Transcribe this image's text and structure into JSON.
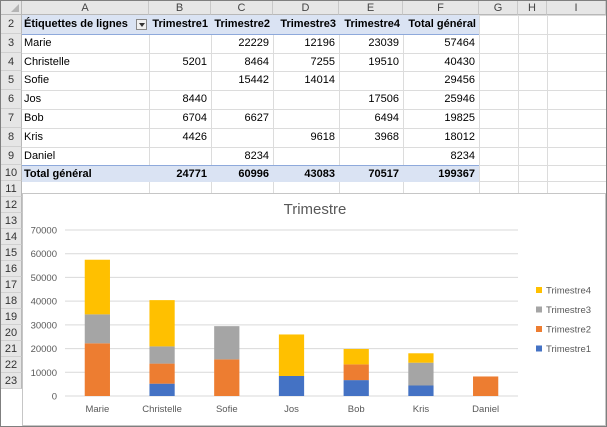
{
  "columns": [
    "A",
    "B",
    "C",
    "D",
    "E",
    "F",
    "G",
    "H",
    "I"
  ],
  "rows": [
    "2",
    "3",
    "4",
    "5",
    "6",
    "7",
    "8",
    "9",
    "10",
    "11",
    "12",
    "13",
    "14",
    "15",
    "16",
    "17",
    "18",
    "19",
    "20",
    "21",
    "22",
    "23"
  ],
  "pivot": {
    "header": {
      "row_label": "Étiquettes de lignes",
      "cols": [
        "Trimestre1",
        "Trimestre2",
        "Trimestre3",
        "Trimestre4",
        "Total général"
      ]
    },
    "body": [
      {
        "name": "Marie",
        "t1": "",
        "t2": "22229",
        "t3": "12196",
        "t4": "23039",
        "total": "57464"
      },
      {
        "name": "Christelle",
        "t1": "5201",
        "t2": "8464",
        "t3": "7255",
        "t4": "19510",
        "total": "40430"
      },
      {
        "name": "Sofie",
        "t1": "",
        "t2": "15442",
        "t3": "14014",
        "t4": "",
        "total": "29456"
      },
      {
        "name": "Jos",
        "t1": "8440",
        "t2": "",
        "t3": "",
        "t4": "17506",
        "total": "25946"
      },
      {
        "name": "Bob",
        "t1": "6704",
        "t2": "6627",
        "t3": "",
        "t4": "6494",
        "total": "19825"
      },
      {
        "name": "Kris",
        "t1": "4426",
        "t2": "",
        "t3": "9618",
        "t4": "3968",
        "total": "18012"
      },
      {
        "name": "Daniel",
        "t1": "",
        "t2": "8234",
        "t3": "",
        "t4": "",
        "total": "8234"
      }
    ],
    "total": {
      "label": "Total général",
      "t1": "24771",
      "t2": "60996",
      "t3": "43083",
      "t4": "70517",
      "total": "199367"
    }
  },
  "chart_data": {
    "type": "bar",
    "stacked": true,
    "title": "Trimestre",
    "categories": [
      "Marie",
      "Christelle",
      "Sofie",
      "Jos",
      "Bob",
      "Kris",
      "Daniel"
    ],
    "series": [
      {
        "name": "Trimestre1",
        "color": "#4472c4",
        "values": [
          0,
          5201,
          0,
          8440,
          6704,
          4426,
          0
        ]
      },
      {
        "name": "Trimestre2",
        "color": "#ed7d31",
        "values": [
          22229,
          8464,
          15442,
          0,
          6627,
          0,
          8234
        ]
      },
      {
        "name": "Trimestre3",
        "color": "#a5a5a5",
        "values": [
          12196,
          7255,
          14014,
          0,
          0,
          9618,
          0
        ]
      },
      {
        "name": "Trimestre4",
        "color": "#ffc000",
        "values": [
          23039,
          19510,
          0,
          17506,
          6494,
          3968,
          0
        ]
      }
    ],
    "ylim": [
      0,
      70000
    ],
    "yticks": [
      "0",
      "10000",
      "20000",
      "30000",
      "40000",
      "50000",
      "60000",
      "70000"
    ],
    "grid": true,
    "legend_position": "right"
  }
}
